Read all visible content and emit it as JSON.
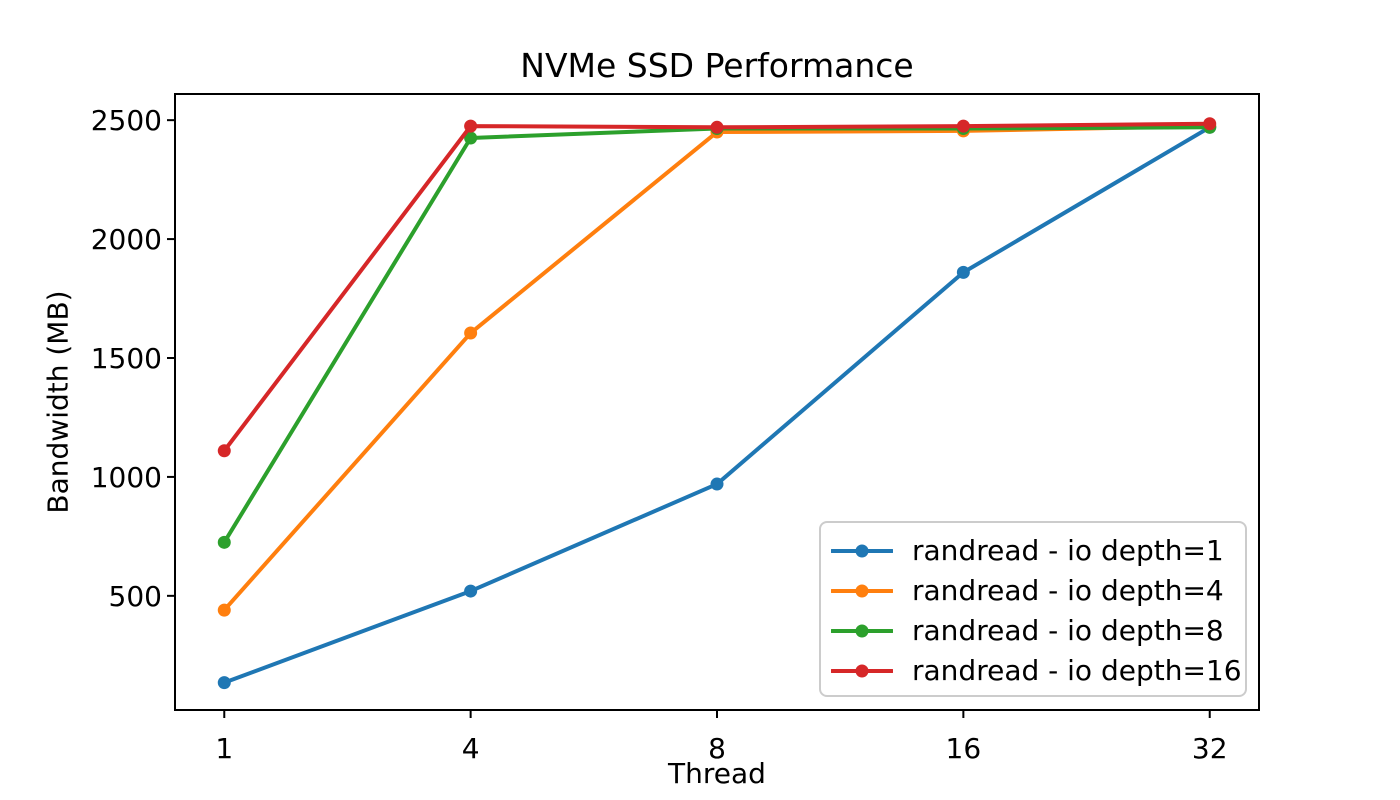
{
  "chart_data": {
    "type": "line",
    "title": "NVMe SSD Performance",
    "xlabel": "Thread",
    "ylabel": "Bandwidth (MB)",
    "categories": [
      "1",
      "4",
      "8",
      "16",
      "32"
    ],
    "x_values": [
      1,
      4,
      8,
      16,
      32
    ],
    "series": [
      {
        "name": "randread - io depth=1",
        "color": "#1f77b4",
        "values": [
          135,
          520,
          970,
          1860,
          2470
        ]
      },
      {
        "name": "randread - io depth=4",
        "color": "#ff7f0e",
        "values": [
          440,
          1605,
          2450,
          2455,
          2475
        ]
      },
      {
        "name": "randread - io depth=8",
        "color": "#2ca02c",
        "values": [
          725,
          2425,
          2465,
          2465,
          2470
        ]
      },
      {
        "name": "randread - io depth=16",
        "color": "#d62728",
        "values": [
          1110,
          2475,
          2470,
          2475,
          2485
        ]
      }
    ],
    "yticks": [
      500,
      1000,
      1500,
      2000,
      2500
    ],
    "ytick_labels": [
      "500",
      "1000",
      "1500",
      "2000",
      "2500"
    ],
    "xtick_labels": [
      "1",
      "4",
      "8",
      "16",
      "32"
    ],
    "ylim": [
      20,
      2610
    ],
    "xlim": [
      -0.2,
      4.2
    ],
    "grid": false,
    "marker": "o",
    "legend": {
      "position": "lower right",
      "entries": [
        "randread - io depth=1",
        "randread - io depth=4",
        "randread - io depth=8",
        "randread - io depth=16"
      ]
    },
    "colors": {
      "axis": "#000000",
      "text": "#000000",
      "background": "#ffffff",
      "legend_border": "#cccccc"
    }
  }
}
